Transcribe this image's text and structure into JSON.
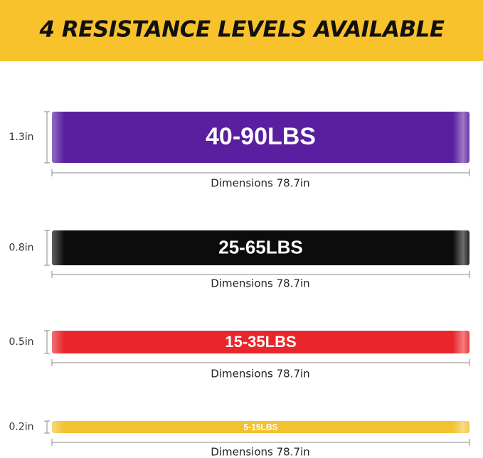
{
  "header": {
    "title": "4 RESISTANCE LEVELS AVAILABLE"
  },
  "bands": [
    {
      "resistance": "40-90LBS",
      "width": "1.3in",
      "dimensions": "Dimensions 78.7in"
    },
    {
      "resistance": "25-65LBS",
      "width": "0.8in",
      "dimensions": "Dimensions 78.7in"
    },
    {
      "resistance": "15-35LBS",
      "width": "0.5in",
      "dimensions": "Dimensions 78.7in"
    },
    {
      "resistance": "5-15LBS",
      "width": "0.2in",
      "dimensions": "Dimensions 78.7in"
    }
  ]
}
